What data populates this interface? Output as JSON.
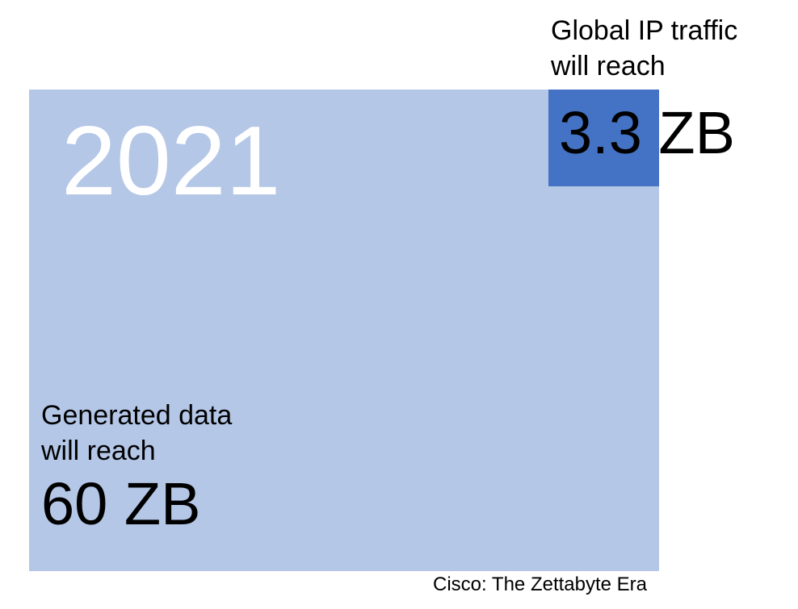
{
  "year": "2021",
  "ip_traffic": {
    "label_lines": [
      "Global IP traffic",
      "will reach"
    ],
    "value": "3.3 ZB"
  },
  "generated_data": {
    "label_lines": [
      "Generated data",
      "will reach"
    ],
    "value": "60 ZB"
  },
  "source": "Cisco: The Zettabyte Era",
  "colors": {
    "generated_data_box": "#b4c7e7",
    "ip_traffic_box": "#4472c4",
    "year_text": "#ffffff",
    "background": "#ffffff"
  }
}
